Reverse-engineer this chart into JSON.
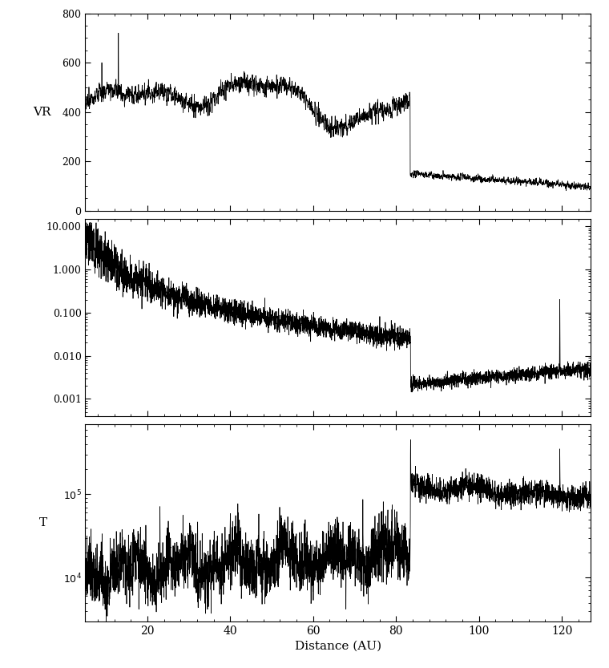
{
  "title": "",
  "xlabel": "Distance (AU)",
  "ylabel_top": "VR",
  "ylabel_mid": "",
  "ylabel_bot": "T",
  "xlim": [
    5,
    127
  ],
  "xticks": [
    20,
    40,
    60,
    80,
    100,
    120
  ],
  "vr_ylim": [
    0,
    800
  ],
  "vr_yticks": [
    0,
    200,
    400,
    600,
    800
  ],
  "density_yticks": [
    0.001,
    0.01,
    0.1,
    1.0,
    10.0
  ],
  "density_ytick_labels": [
    "0.001",
    "0.010",
    "0.100",
    "1.000",
    "10.000"
  ],
  "density_ylim": [
    0.0004,
    15.0
  ],
  "temp_ylim": [
    3000,
    700000
  ],
  "temp_yticks": [
    10000,
    100000
  ],
  "temp_ytick_labels": [
    "$10^4$",
    "$10^5$"
  ],
  "line_color": "black",
  "bg_color": "white",
  "linewidth": 0.55,
  "termination_shock_AU": 83.5,
  "seed": 12345
}
